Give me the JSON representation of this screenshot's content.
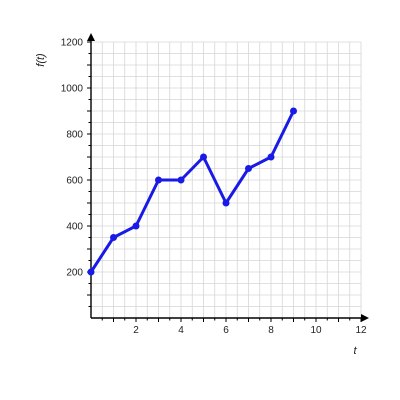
{
  "chart_data": {
    "type": "line",
    "xlabel": "t",
    "ylabel": "f(t)",
    "xlim": [
      0,
      12
    ],
    "ylim": [
      0,
      1200
    ],
    "grid": true,
    "x_ticks": [
      2,
      4,
      6,
      8,
      10,
      12
    ],
    "y_ticks": [
      200,
      400,
      600,
      800,
      1000,
      1200
    ],
    "series": [
      {
        "x": [
          0,
          1,
          2,
          3,
          4,
          5,
          6,
          7,
          8,
          9
        ],
        "values": [
          200,
          350,
          400,
          600,
          600,
          700,
          500,
          650,
          700,
          900
        ]
      }
    ],
    "colors": {
      "line": "#1a1ae6",
      "grid": "#d6d6d6",
      "axis": "#000000"
    }
  }
}
